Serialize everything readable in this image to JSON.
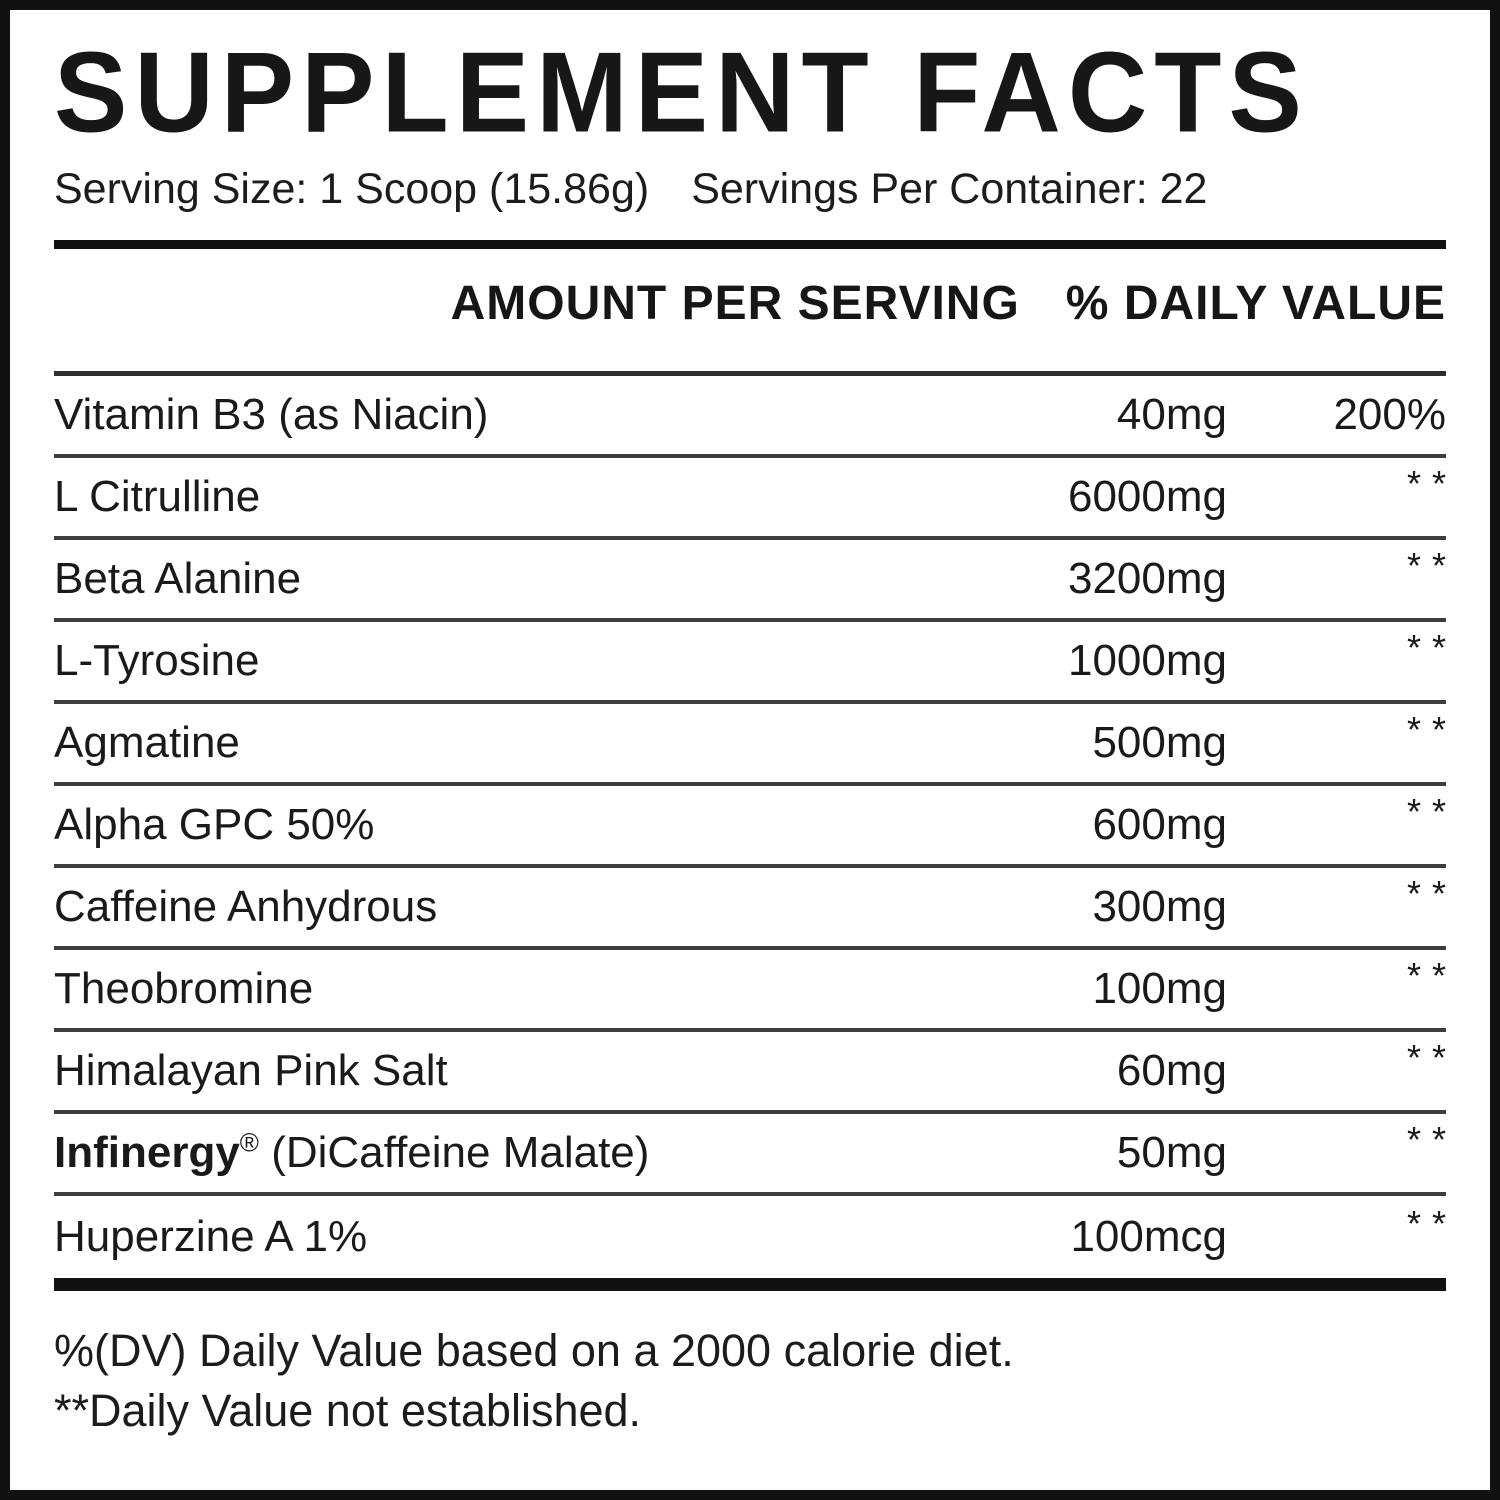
{
  "label": {
    "title": "SUPPLEMENT FACTS",
    "serving": {
      "size": "Serving Size: 1 Scoop (15.86g)",
      "per_container": "Servings Per Container: 22"
    },
    "columns": {
      "amount": "AMOUNT PER SERVING",
      "daily_value": "% DAILY VALUE"
    },
    "rows": [
      {
        "name": "Vitamin B3 (as Niacin)",
        "amount": "40mg",
        "daily_value": "200%"
      },
      {
        "name": "L Citrulline",
        "amount": "6000mg",
        "daily_value": "**"
      },
      {
        "name": "Beta Alanine",
        "amount": "3200mg",
        "daily_value": "**"
      },
      {
        "name": "L-Tyrosine",
        "amount": "1000mg",
        "daily_value": "**"
      },
      {
        "name": "Agmatine",
        "amount": "500mg",
        "daily_value": "**"
      },
      {
        "name": "Alpha GPC 50%",
        "amount": "600mg",
        "daily_value": "**"
      },
      {
        "name": "Caffeine Anhydrous",
        "amount": "300mg",
        "daily_value": "**"
      },
      {
        "name": "Theobromine",
        "amount": "100mg",
        "daily_value": "**"
      },
      {
        "name": "Himalayan Pink Salt",
        "amount": "60mg",
        "daily_value": "**"
      },
      {
        "name_bold": "Infinergy",
        "name_sup": "®",
        "name_rest": " (DiCaffeine Malate)",
        "amount": "50mg",
        "daily_value": "**"
      },
      {
        "name": "Huperzine A 1%",
        "amount": "100mcg",
        "daily_value": "**"
      }
    ],
    "footnotes": [
      "%(DV) Daily Value based on a 2000 calorie diet.",
      "**Daily Value not established."
    ],
    "colors": {
      "background": "#ffffff",
      "text": "#1a1a1a",
      "frame_border": "#111111",
      "separator": "#3d3d3d"
    }
  }
}
